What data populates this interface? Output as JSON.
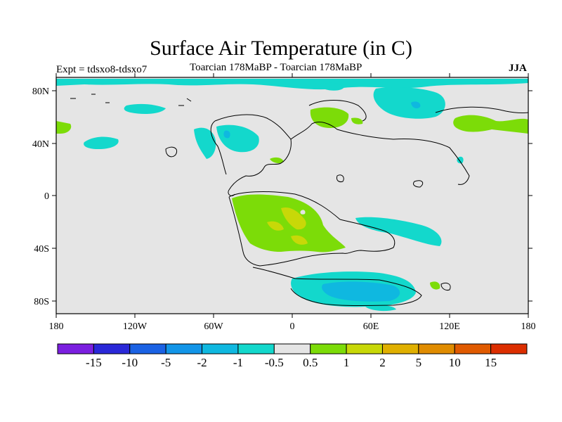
{
  "title": "Surface Air Temperature (in C)",
  "subtitle_left": "Expt = tdsxo8-tdsxo7",
  "subtitle_center": "Toarcian 178MaBP - Toarcian 178MaBP",
  "subtitle_right": "JJA",
  "x_ticks": [
    "180",
    "120W",
    "60W",
    "0",
    "60E",
    "120E",
    "180"
  ],
  "y_ticks": [
    "80N",
    "40N",
    "0",
    "40S",
    "80S"
  ],
  "colorbar": {
    "labels": [
      "-15",
      "-10",
      "-5",
      "-2",
      "-1",
      "-0.5",
      "0.5",
      "1",
      "2",
      "5",
      "10",
      "15"
    ],
    "colors": [
      "#7b1fe0",
      "#2a28d8",
      "#1b62e4",
      "#1295e8",
      "#0fb8e0",
      "#13d8cc",
      "#e5e5e5",
      "#7cdc08",
      "#c8d808",
      "#e0b000",
      "#e08c00",
      "#e05a00",
      "#dc2e00"
    ]
  },
  "colors": {
    "background_field": "#e5e5e5",
    "coast": "#000000"
  }
}
